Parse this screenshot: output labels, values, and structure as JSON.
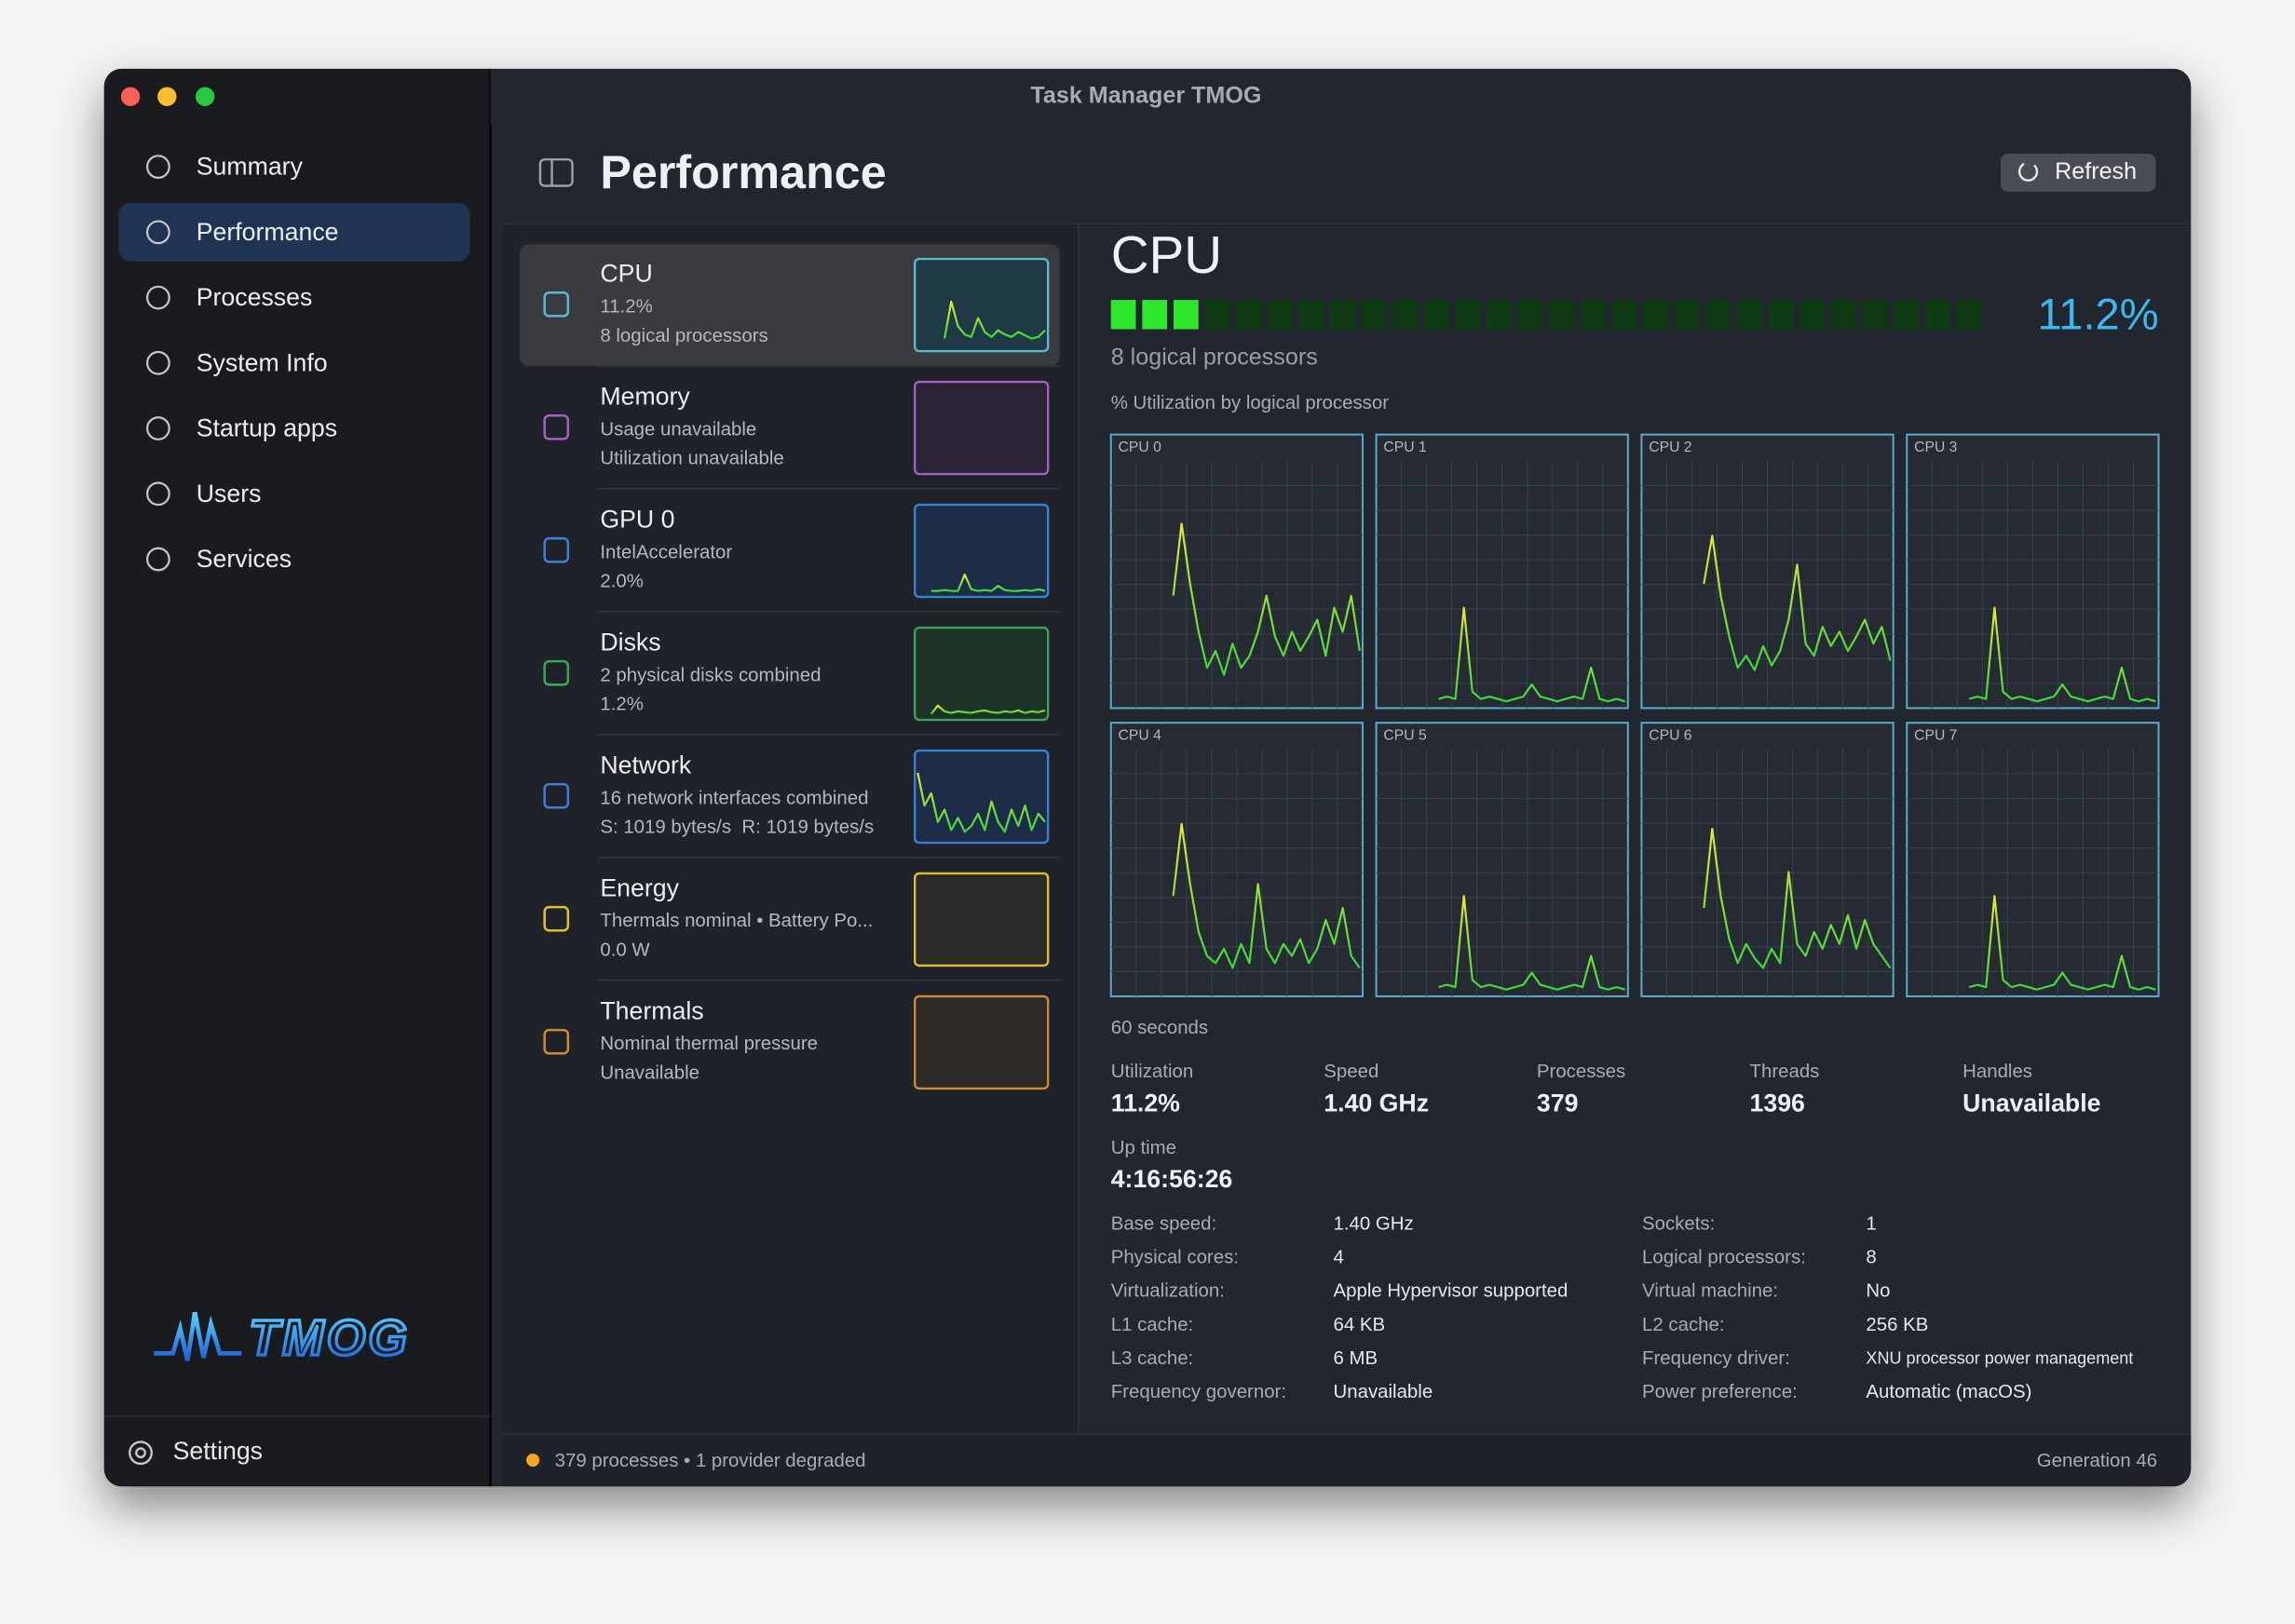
{
  "window_title": "Task Manager TMOG",
  "sidebar": {
    "items": [
      "Summary",
      "Performance",
      "Processes",
      "System Info",
      "Startup apps",
      "Users",
      "Services"
    ],
    "selected": 1,
    "logo": "TMOG",
    "settings": "Settings"
  },
  "header": {
    "title": "Performance",
    "refresh": "Refresh"
  },
  "selected_device": 0,
  "devices": [
    {
      "name": "CPU",
      "lines": [
        "11.2%",
        "8 logical processors"
      ],
      "color": "#5fb7d0",
      "fill": "#1f3a44",
      "graph": [
        10,
        55,
        25,
        15,
        12,
        35,
        18,
        12,
        20,
        15,
        12,
        18,
        14,
        10,
        12,
        20
      ]
    },
    {
      "name": "Memory",
      "lines": [
        "Usage unavailable",
        "Utilization unavailable"
      ],
      "color": "#a45ec4",
      "fill": "#2b2435"
    },
    {
      "name": "GPU 0",
      "lines": [
        "IntelAccelerator",
        "2.0%"
      ],
      "color": "#3d7fd6",
      "fill": "#1d2d48",
      "graph": [
        2,
        2,
        3,
        2,
        2,
        22,
        4,
        2,
        3,
        2,
        8,
        3,
        2,
        2,
        3,
        2,
        4,
        2
      ]
    },
    {
      "name": "Disks",
      "lines": [
        "2 physical disks combined",
        "1.2%"
      ],
      "color": "#3aa55a",
      "fill": "#1e3228",
      "graph": [
        2,
        12,
        5,
        3,
        5,
        4,
        3,
        5,
        6,
        4,
        3,
        5,
        4,
        6,
        3,
        5,
        4,
        6
      ]
    },
    {
      "name": "Network",
      "lines": [
        "16 network interfaces combined",
        "S: 1019 bytes/s  R: 1019 bytes/s"
      ],
      "color": "#3d7fd6",
      "fill": "#1d2d48",
      "graph": [
        80,
        40,
        55,
        20,
        35,
        10,
        25,
        8,
        15,
        30,
        10,
        45,
        20,
        8,
        35,
        15,
        40,
        10,
        30,
        20
      ]
    },
    {
      "name": "Energy",
      "lines": [
        "Thermals nominal • Battery Po...",
        "0.0 W"
      ],
      "color": "#e0c030",
      "fill": "#2a2a28",
      "graph": [
        1,
        1,
        1,
        1,
        1,
        1,
        1,
        1,
        1,
        1,
        1,
        1,
        1,
        1,
        1,
        1
      ]
    },
    {
      "name": "Thermals",
      "lines": [
        "Nominal thermal pressure",
        "Unavailable"
      ],
      "color": "#d08a30",
      "fill": "#2e2a28"
    }
  ],
  "detail": {
    "title": "CPU",
    "utilization": "11.2%",
    "subtitle": "8 logical processors",
    "graph_caption": "% Utilization by logical processor",
    "cores": [
      {
        "name": "CPU 0",
        "values": [
          45,
          75,
          50,
          30,
          15,
          22,
          12,
          25,
          15,
          20,
          30,
          45,
          28,
          20,
          30,
          22,
          28,
          35,
          20,
          40,
          30,
          45,
          22
        ]
      },
      {
        "name": "CPU 1",
        "values": [
          2,
          3,
          2,
          40,
          5,
          2,
          3,
          2,
          1,
          2,
          3,
          8,
          3,
          2,
          1,
          2,
          3,
          2,
          15,
          2,
          1,
          2,
          1
        ]
      },
      {
        "name": "CPU 2",
        "values": [
          50,
          70,
          45,
          28,
          15,
          20,
          14,
          24,
          16,
          22,
          35,
          58,
          25,
          20,
          32,
          24,
          30,
          22,
          28,
          35,
          25,
          32,
          18
        ]
      },
      {
        "name": "CPU 3",
        "values": [
          2,
          3,
          2,
          40,
          5,
          2,
          3,
          2,
          1,
          2,
          3,
          8,
          3,
          2,
          1,
          2,
          3,
          2,
          15,
          2,
          1,
          2,
          1
        ]
      },
      {
        "name": "CPU 4",
        "values": [
          40,
          70,
          45,
          25,
          15,
          12,
          18,
          10,
          20,
          12,
          45,
          18,
          12,
          20,
          15,
          22,
          12,
          18,
          30,
          20,
          35,
          15,
          10
        ]
      },
      {
        "name": "CPU 5",
        "values": [
          2,
          3,
          2,
          40,
          5,
          2,
          3,
          2,
          1,
          2,
          3,
          8,
          3,
          2,
          1,
          2,
          3,
          2,
          15,
          2,
          1,
          2,
          1
        ]
      },
      {
        "name": "CPU 6",
        "values": [
          35,
          68,
          40,
          22,
          12,
          20,
          14,
          10,
          18,
          12,
          50,
          20,
          15,
          25,
          18,
          28,
          20,
          32,
          18,
          30,
          20,
          15,
          10
        ]
      },
      {
        "name": "CPU 7",
        "values": [
          2,
          3,
          2,
          40,
          5,
          2,
          3,
          2,
          1,
          2,
          3,
          8,
          3,
          2,
          1,
          2,
          3,
          2,
          15,
          2,
          1,
          2,
          1
        ]
      }
    ],
    "time_span": "60 seconds",
    "stats": [
      {
        "label": "Utilization",
        "value": "11.2%"
      },
      {
        "label": "Speed",
        "value": "1.40 GHz"
      },
      {
        "label": "Processes",
        "value": "379"
      },
      {
        "label": "Threads",
        "value": "1396"
      },
      {
        "label": "Handles",
        "value": "Unavailable"
      }
    ],
    "uptime": {
      "label": "Up time",
      "value": "4:16:56:26"
    },
    "specs_left": [
      {
        "label": "Base speed:",
        "value": "1.40 GHz"
      },
      {
        "label": "Physical cores:",
        "value": "4"
      },
      {
        "label": "Virtualization:",
        "value": "Apple Hypervisor supported"
      },
      {
        "label": "L1 cache:",
        "value": "64 KB"
      },
      {
        "label": "L3 cache:",
        "value": "6 MB"
      },
      {
        "label": "Frequency governor:",
        "value": "Unavailable"
      }
    ],
    "specs_right": [
      {
        "label": "Sockets:",
        "value": "1"
      },
      {
        "label": "Logical processors:",
        "value": "8"
      },
      {
        "label": "Virtual machine:",
        "value": "No"
      },
      {
        "label": "L2 cache:",
        "value": "256 KB"
      },
      {
        "label": "Frequency driver:",
        "value": "XNU processor power management"
      },
      {
        "label": "Power preference:",
        "value": "Automatic (macOS)"
      }
    ]
  },
  "status": {
    "text": "379 processes • 1 provider degraded",
    "generation": "Generation 46"
  }
}
